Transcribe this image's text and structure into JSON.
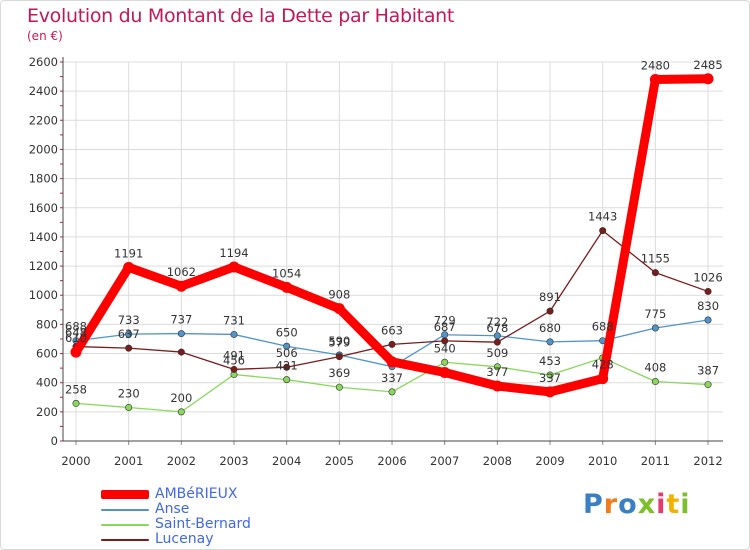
{
  "title": "Evolution du Montant de la Dette par Habitant",
  "subtitle": "(en €)",
  "logo": {
    "text": "Proxiti",
    "colors": [
      "#3a7fc4",
      "#f07d1a",
      "#3a7fc4",
      "#7dbf2a",
      "#e8386d",
      "#f0b400",
      "#7dbf2a"
    ]
  },
  "chart_data": {
    "type": "line",
    "title": "Evolution du Montant de la Dette par Habitant",
    "subtitle": "(en €)",
    "x": [
      "2000",
      "2001",
      "2002",
      "2003",
      "2004",
      "2005",
      "2006",
      "2007",
      "2008",
      "2009",
      "2010",
      "2011",
      "2012"
    ],
    "ylim": [
      0,
      2600
    ],
    "yticks": [
      0,
      200,
      400,
      600,
      800,
      1000,
      1200,
      1400,
      1600,
      1800,
      2000,
      2200,
      2400,
      2600
    ],
    "grid": true,
    "legend_position": "bottom-left",
    "series": [
      {
        "name": "AMBéRIEUX",
        "color": "#ff0000",
        "values": [
          610,
          1191,
          1062,
          1194,
          1054,
          908,
          543,
          470,
          377,
          337,
          428,
          2480,
          2485
        ],
        "labels": [
          "610",
          "1191",
          "1062",
          "1194",
          "1054",
          "908",
          "",
          "",
          "377",
          "337",
          "428",
          "2480",
          "2485"
        ]
      },
      {
        "name": "Anse",
        "color": "#4f95c9",
        "values": [
          688,
          733,
          737,
          731,
          650,
          590,
          510,
          729,
          722,
          680,
          688,
          775,
          830
        ],
        "labels": [
          "688",
          "733",
          "737",
          "731",
          "650",
          "590",
          "",
          "729",
          "722",
          "680",
          "688",
          "775",
          "830"
        ]
      },
      {
        "name": "Saint-Bernard",
        "color": "#88d85a",
        "values": [
          258,
          230,
          200,
          456,
          421,
          369,
          337,
          540,
          509,
          453,
          570,
          408,
          387
        ],
        "labels": [
          "258",
          "230",
          "200",
          "456",
          "421",
          "369",
          "337",
          "540",
          "509",
          "453",
          "",
          "408",
          "387"
        ]
      },
      {
        "name": "Lucenay",
        "color": "#7a1c1c",
        "values": [
          648,
          637,
          610,
          491,
          506,
          579,
          663,
          687,
          678,
          891,
          1443,
          1155,
          1026
        ],
        "labels": [
          "648",
          "637",
          "",
          "491",
          "506",
          "579",
          "663",
          "687",
          "678",
          "891",
          "1443",
          "1155",
          "1026"
        ]
      }
    ]
  }
}
